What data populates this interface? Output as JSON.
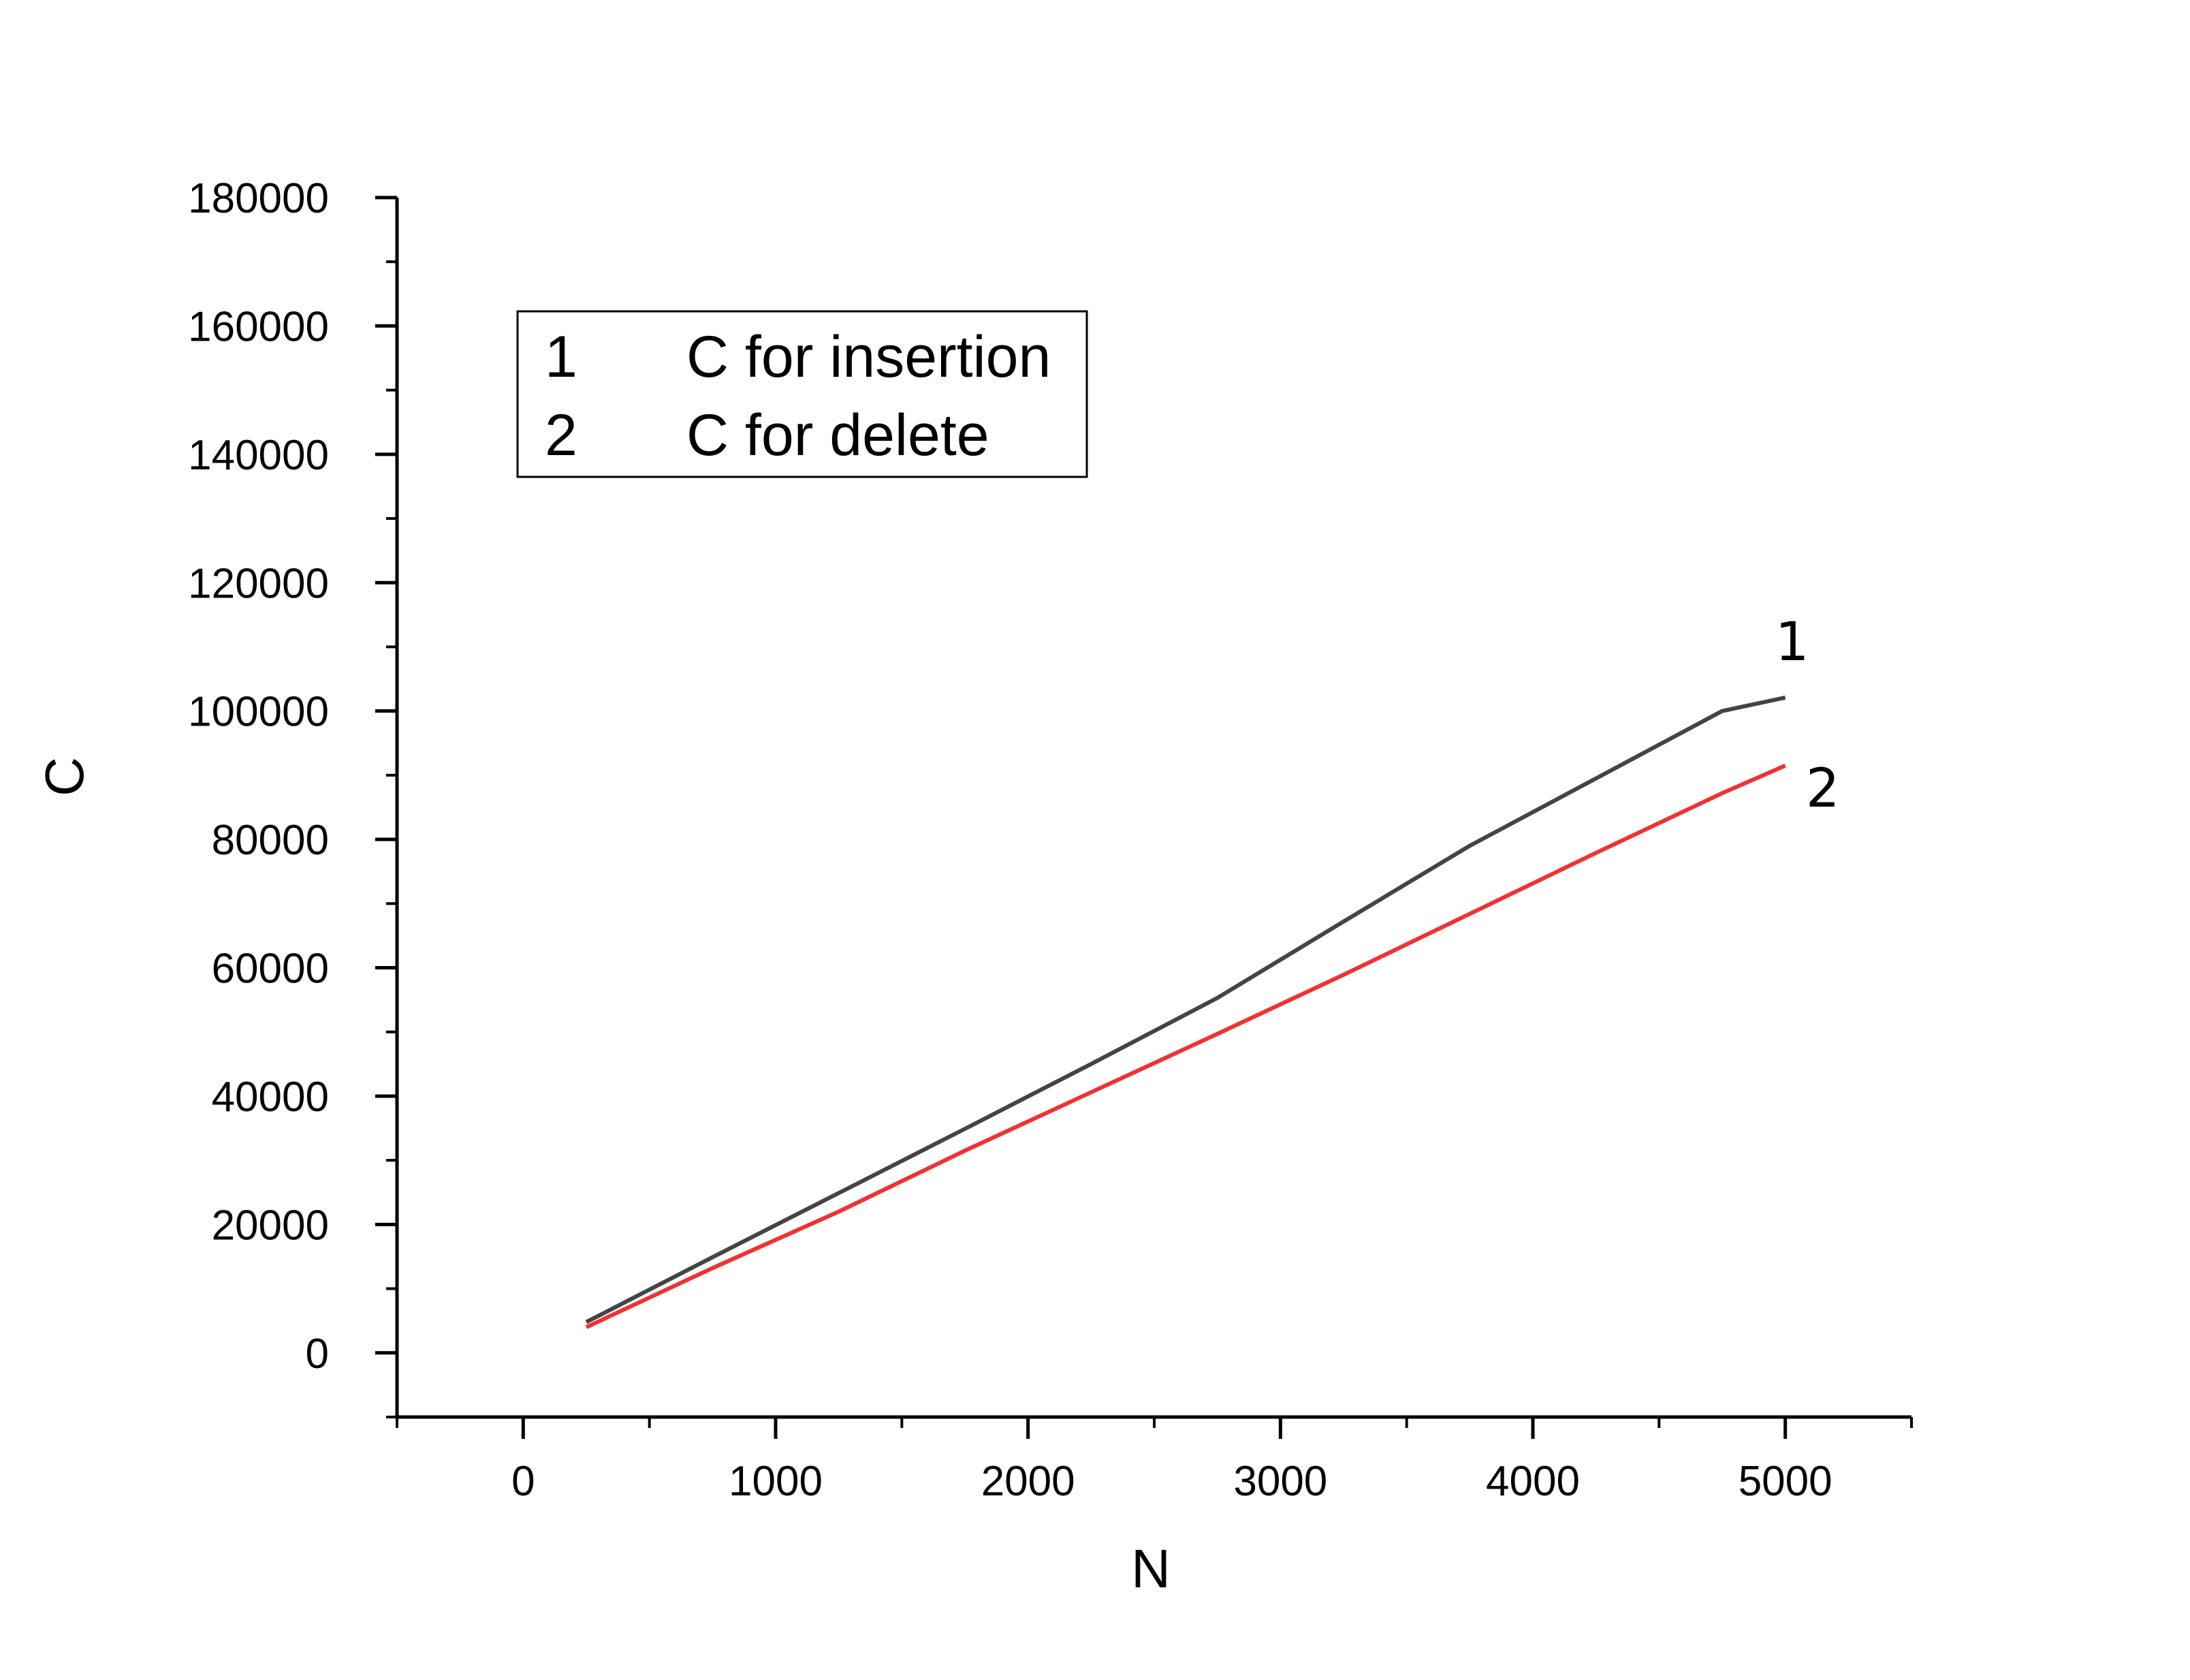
{
  "chart_data": {
    "type": "line",
    "title": "",
    "xlabel": "N",
    "ylabel": "C",
    "xlim": [
      -500,
      5500
    ],
    "ylim": [
      -10000,
      180000
    ],
    "x_ticks": [
      0,
      1000,
      2000,
      3000,
      4000,
      5000
    ],
    "x_tick_labels": [
      "0",
      "1000",
      "2000",
      "3000",
      "4000",
      "5000"
    ],
    "y_ticks": [
      0,
      20000,
      40000,
      60000,
      80000,
      100000,
      120000,
      140000,
      160000,
      180000
    ],
    "y_tick_labels": [
      "0",
      "20000",
      "40000",
      "60000",
      "80000",
      "100000",
      "120000",
      "140000",
      "160000",
      "180000"
    ],
    "grid": false,
    "legend_position": "top-left",
    "legend": [
      {
        "marker": "1",
        "label": "C for insertion"
      },
      {
        "marker": "2",
        "label": "C for delete"
      }
    ],
    "series": [
      {
        "name": "C for insertion",
        "curve_label": "1",
        "color": "#444444",
        "x": [
          250,
          750,
          1250,
          1750,
          2250,
          2750,
          3250,
          3750,
          4250,
          4750,
          5000
        ],
        "y": [
          4800,
          14900,
          24900,
          34900,
          45000,
          55300,
          67200,
          79000,
          89500,
          100000,
          102100
        ]
      },
      {
        "name": "C for delete",
        "curve_label": "2",
        "color": "#ee3333",
        "x": [
          250,
          750,
          1250,
          1750,
          2250,
          2750,
          3250,
          3750,
          4250,
          4750,
          5000
        ],
        "y": [
          4000,
          13200,
          22000,
          31500,
          40600,
          49700,
          58900,
          68400,
          77900,
          87200,
          91500
        ]
      }
    ]
  }
}
